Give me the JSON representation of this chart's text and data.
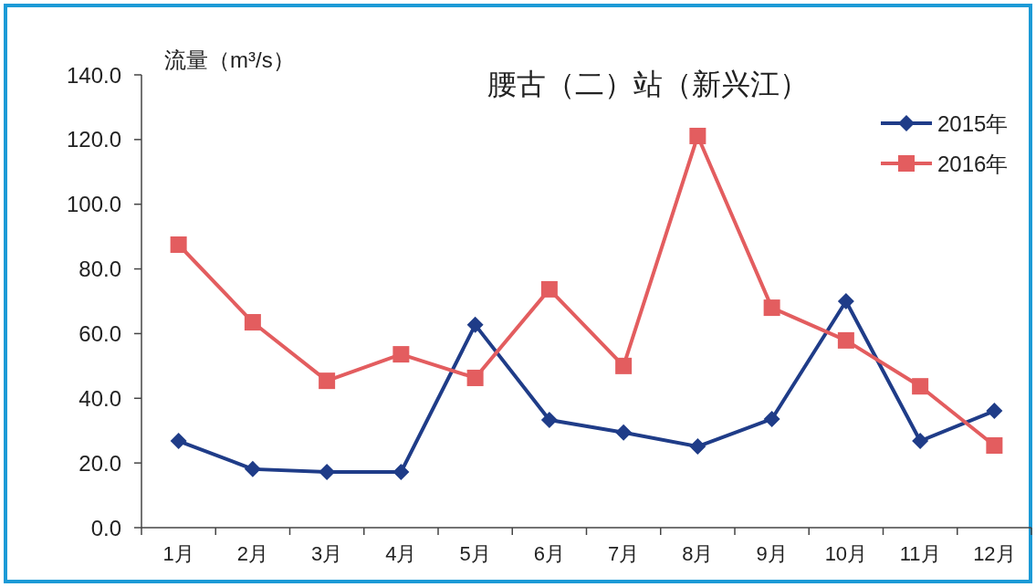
{
  "chart_data": {
    "type": "line",
    "title": "腰古（二）站（新兴江）",
    "ylabel": "流量（m³/s）",
    "categories": [
      "1月",
      "2月",
      "3月",
      "4月",
      "5月",
      "6月",
      "7月",
      "8月",
      "9月",
      "10月",
      "11月",
      "12月"
    ],
    "series": [
      {
        "name": "2015年",
        "color": "#1f3c88",
        "marker": "diamond",
        "values": [
          26.8,
          18.1,
          17.2,
          17.2,
          62.7,
          33.3,
          29.4,
          25.1,
          33.6,
          70.0,
          26.8,
          36.1
        ]
      },
      {
        "name": "2016年",
        "color": "#e35d5f",
        "marker": "square",
        "values": [
          87.5,
          63.5,
          45.4,
          53.6,
          46.3,
          73.7,
          50.0,
          121.1,
          68.0,
          57.9,
          43.7,
          25.4
        ]
      }
    ],
    "ylim": [
      0,
      140
    ],
    "yticks": [
      {
        "value": 0,
        "label": "0.0"
      },
      {
        "value": 20,
        "label": "20.0"
      },
      {
        "value": 40,
        "label": "40.0"
      },
      {
        "value": 60,
        "label": "60.0"
      },
      {
        "value": 80,
        "label": "80.0"
      },
      {
        "value": 100,
        "label": "100.0"
      },
      {
        "value": 120,
        "label": "120.0"
      },
      {
        "value": 140,
        "label": "140.0"
      }
    ],
    "grid": false,
    "legend": "top right",
    "line_style": "solid"
  }
}
